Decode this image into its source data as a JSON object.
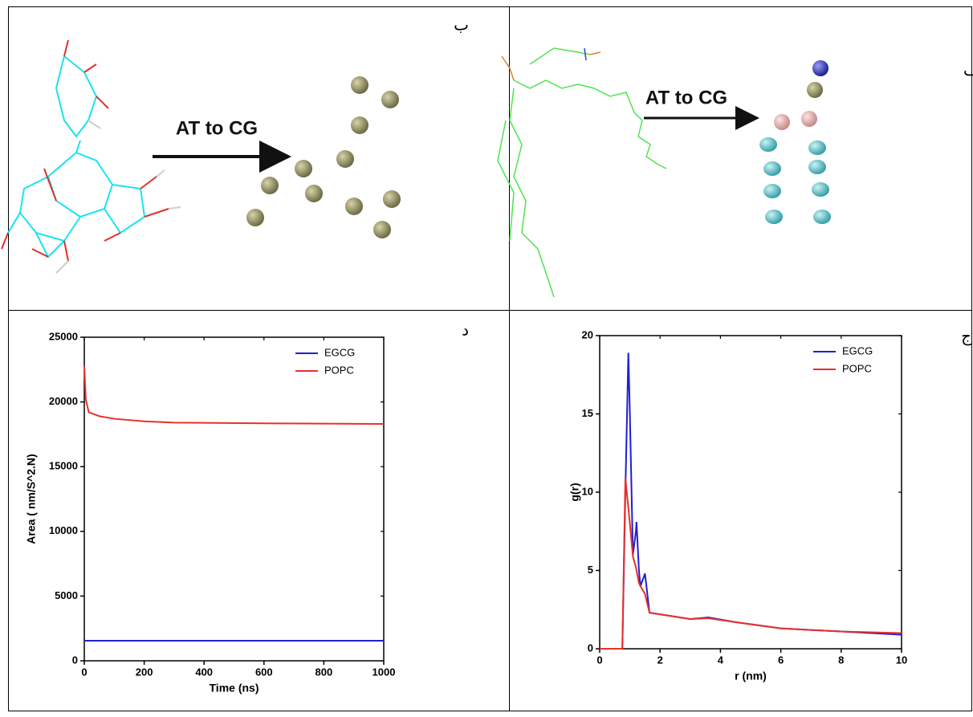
{
  "panel_labels": {
    "top_left": "ب",
    "top_right": "الف",
    "bottom_left": "د",
    "bottom_right": "ج"
  },
  "diagram_labels": {
    "left_arrow": "AT to CG",
    "right_arrow": "AT to CG"
  },
  "chart_data": [
    {
      "type": "line",
      "x_label": "Time (ns)",
      "y_label": "Area ( nm/S^2.N)",
      "x": [
        0,
        5,
        15,
        50,
        100,
        200,
        300,
        600,
        1000
      ],
      "series": [
        {
          "name": "EGCG",
          "color": "#1f1fd6",
          "values": [
            1550,
            1550,
            1550,
            1550,
            1550,
            1550,
            1550,
            1550,
            1550
          ]
        },
        {
          "name": "POPC",
          "color": "#e8302a",
          "values": [
            22800,
            20200,
            19200,
            18900,
            18700,
            18500,
            18400,
            18350,
            18300
          ]
        }
      ],
      "xlim": [
        0,
        1000
      ],
      "ylim": [
        0,
        25000
      ],
      "xticks": [
        0,
        200,
        400,
        600,
        800,
        1000
      ],
      "yticks": [
        0,
        5000,
        10000,
        15000,
        20000,
        25000
      ],
      "legend": "upper right"
    },
    {
      "type": "line",
      "x_label": "r (nm)",
      "y_label": "g(r)",
      "x": [
        0,
        0.75,
        0.85,
        0.95,
        1.0,
        1.1,
        1.2,
        1.22,
        1.3,
        1.35,
        1.5,
        1.65,
        2,
        3,
        3.6,
        4.5,
        6,
        8,
        10
      ],
      "series": [
        {
          "name": "EGCG",
          "color": "#1f1fd6",
          "values": [
            0,
            0,
            10,
            18.9,
            15,
            6,
            7.5,
            8.1,
            5,
            4,
            4.8,
            2.3,
            2.2,
            1.9,
            2.0,
            1.7,
            1.3,
            1.1,
            0.9
          ]
        },
        {
          "name": "POPC",
          "color": "#e8302a",
          "values": [
            0,
            0,
            10.9,
            9,
            8,
            5.9,
            5.2,
            5.0,
            4.2,
            4.0,
            3.5,
            2.3,
            2.2,
            1.9,
            1.95,
            1.7,
            1.3,
            1.1,
            1.0
          ]
        }
      ],
      "xlim": [
        0,
        10
      ],
      "ylim": [
        0,
        20
      ],
      "xticks": [
        0,
        2,
        4,
        6,
        8,
        10
      ],
      "yticks": [
        0,
        5,
        10,
        15,
        20
      ],
      "legend": "upper right"
    }
  ]
}
